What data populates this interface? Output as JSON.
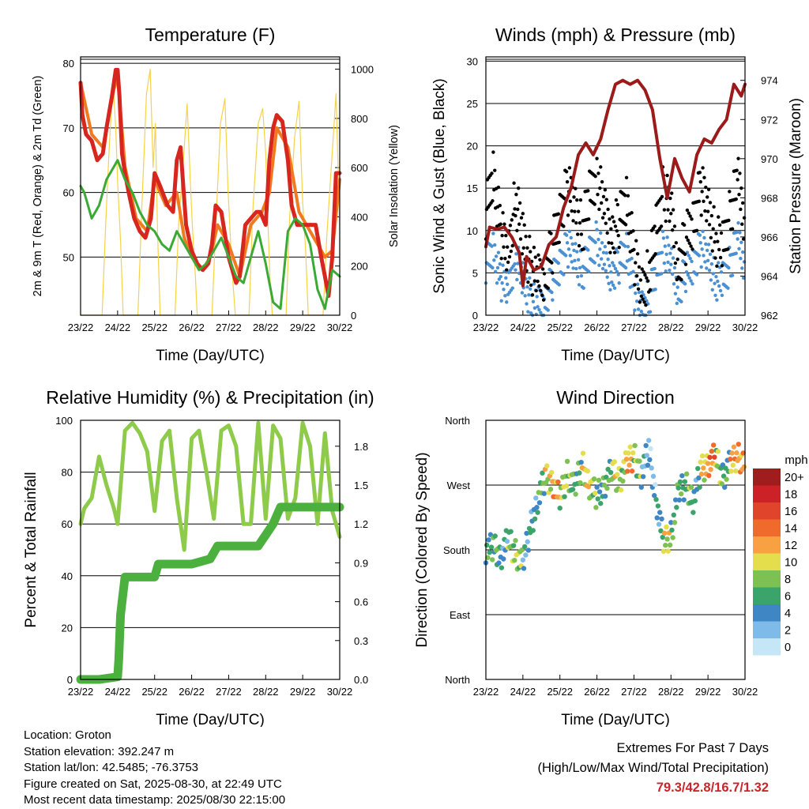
{
  "chart_data": [
    {
      "type": "line",
      "title": "Temperature (F)",
      "xlabel": "Time (Day/UTC)",
      "ylabel": "2m & 9m T (Red, Orange) & 2m Td (Green)",
      "ylabel_right": "Solar Insolation (Yellow)",
      "x_ticks": [
        "23/22",
        "24/22",
        "25/22",
        "26/22",
        "27/22",
        "28/22",
        "29/22",
        "30/22"
      ],
      "ylim": [
        41,
        81
      ],
      "yticks": [
        50,
        60,
        70,
        80
      ],
      "ylim_right": [
        0,
        1050
      ],
      "yticks_right": [
        0,
        200,
        400,
        600,
        800,
        1000
      ],
      "grid": true,
      "series": [
        {
          "color": "#d7261e",
          "axis": "left",
          "x_days": [
            0,
            0.05,
            0.15,
            0.3,
            0.45,
            0.6,
            0.7,
            0.85,
            0.95,
            1.0,
            1.05,
            1.12,
            1.2,
            1.3,
            1.45,
            1.6,
            1.75,
            1.9,
            2.0,
            2.15,
            2.35,
            2.5,
            2.6,
            2.7,
            2.85,
            3.0,
            3.15,
            3.3,
            3.45,
            3.55,
            3.65,
            3.8,
            4.0,
            4.2,
            4.3,
            4.45,
            4.6,
            4.75,
            4.85,
            5.0,
            5.1,
            5.2,
            5.3,
            5.45,
            5.6,
            5.7,
            5.85,
            6.0,
            6.2,
            6.35,
            6.5,
            6.6,
            6.7,
            6.8,
            6.9,
            7.0
          ],
          "values": [
            77,
            72,
            69,
            68,
            65,
            66,
            70,
            75,
            79,
            79,
            75,
            66,
            63,
            60,
            56,
            54,
            53,
            56,
            63,
            61,
            58,
            57,
            65,
            67,
            55,
            51,
            49,
            48,
            49,
            52,
            58,
            57,
            50,
            46,
            47,
            55,
            56,
            57,
            57,
            55,
            65,
            70,
            72,
            71,
            65,
            58,
            55,
            55,
            55,
            55,
            50,
            47,
            44,
            50,
            63,
            63
          ]
        },
        {
          "color": "#f07a20",
          "axis": "left",
          "x_days": [
            0,
            0.3,
            0.6,
            0.9,
            1.0,
            1.2,
            1.5,
            1.8,
            2.0,
            2.3,
            2.6,
            2.8,
            3.0,
            3.3,
            3.5,
            3.7,
            4.0,
            4.3,
            4.6,
            4.9,
            5.1,
            5.3,
            5.6,
            5.9,
            6.2,
            6.4,
            6.6,
            6.8,
            7.0
          ],
          "values": [
            77,
            69,
            67,
            76,
            78,
            64,
            56,
            54,
            62,
            58,
            60,
            53,
            50,
            48,
            50,
            55,
            52,
            47,
            55,
            57,
            60,
            70,
            67,
            57,
            54,
            52,
            50,
            51,
            62
          ]
        },
        {
          "color": "#3aa935",
          "axis": "left",
          "x_days": [
            0,
            0.1,
            0.3,
            0.5,
            0.7,
            0.9,
            1.0,
            1.2,
            1.4,
            1.6,
            1.8,
            2.0,
            2.2,
            2.4,
            2.6,
            2.8,
            3.0,
            3.2,
            3.4,
            3.6,
            3.8,
            4.0,
            4.2,
            4.4,
            4.6,
            4.8,
            5.0,
            5.2,
            5.4,
            5.6,
            5.8,
            6.0,
            6.2,
            6.4,
            6.6,
            6.8,
            7.0
          ],
          "values": [
            61,
            60,
            56,
            58,
            62,
            64,
            65,
            62,
            60,
            57,
            55,
            54,
            52,
            51,
            54,
            52,
            50,
            48,
            49,
            51,
            53,
            50,
            47,
            46,
            50,
            54,
            49,
            43,
            42,
            54,
            56,
            55,
            52,
            45,
            42,
            48,
            47
          ]
        },
        {
          "color": "#f5d24b",
          "axis": "right",
          "x_days": [
            0,
            0.58,
            0.68,
            0.78,
            0.88,
            0.95,
            1.0,
            1.08,
            1.15,
            1.55,
            1.65,
            1.78,
            1.88,
            1.96,
            2.02,
            2.08,
            2.15,
            2.55,
            2.65,
            2.78,
            2.88,
            2.96,
            3.02,
            3.1,
            3.15,
            3.55,
            3.65,
            3.78,
            3.9,
            3.98,
            4.05,
            4.12,
            4.18,
            4.55,
            4.65,
            4.8,
            4.92,
            5.0,
            5.05,
            5.12,
            5.18,
            5.55,
            5.65,
            5.78,
            5.9,
            6.0,
            6.08,
            6.15,
            6.55,
            6.65,
            6.78,
            6.9,
            7.0
          ],
          "values": [
            0,
            0,
            380,
            700,
            940,
            760,
            540,
            300,
            0,
            0,
            420,
            900,
            1000,
            600,
            780,
            330,
            0,
            0,
            380,
            640,
            860,
            560,
            360,
            160,
            0,
            0,
            350,
            780,
            880,
            520,
            300,
            120,
            0,
            0,
            420,
            780,
            840,
            660,
            420,
            140,
            0,
            0,
            400,
            720,
            870,
            460,
            260,
            0,
            0,
            320,
            620,
            900,
            360
          ]
        }
      ]
    },
    {
      "type": "scatter",
      "title": "Winds (mph) & Pressure (mb)",
      "xlabel": "Time (Day/UTC)",
      "ylabel": "Sonic Wind & Gust (Blue, Black)",
      "ylabel_right": "Station Pressure (Maroon)",
      "x_ticks": [
        "23/22",
        "24/22",
        "25/22",
        "26/22",
        "27/22",
        "28/22",
        "29/22",
        "30/22"
      ],
      "ylim": [
        0,
        30.5
      ],
      "yticks": [
        0,
        5,
        10,
        15,
        20,
        25,
        30
      ],
      "ylim_right": [
        962,
        975.2
      ],
      "yticks_right": [
        962,
        964,
        966,
        968,
        970,
        972,
        974
      ],
      "grid": true,
      "series": [
        {
          "color": "#9b1b1b",
          "axis": "right",
          "x_days": [
            0,
            0.1,
            0.3,
            0.5,
            0.7,
            0.9,
            1.0,
            1.1,
            1.3,
            1.5,
            1.7,
            1.9,
            2.1,
            2.3,
            2.5,
            2.7,
            2.9,
            3.1,
            3.3,
            3.5,
            3.7,
            3.9,
            4.1,
            4.3,
            4.5,
            4.7,
            4.9,
            5.1,
            5.3,
            5.5,
            5.7,
            5.9,
            6.1,
            6.3,
            6.5,
            6.7,
            6.9,
            7.0
          ],
          "values": [
            965.5,
            966.5,
            966.4,
            966.5,
            966.0,
            965.2,
            963.5,
            965.0,
            964.3,
            964.5,
            965.6,
            966.0,
            967.5,
            968.5,
            970.2,
            970.8,
            970.2,
            971.0,
            972.5,
            973.8,
            974.0,
            973.8,
            974.0,
            973.5,
            972.5,
            970.0,
            968.0,
            970.0,
            969.0,
            968.3,
            970.2,
            971.0,
            970.8,
            971.5,
            972.0,
            973.8,
            973.2,
            973.8
          ]
        },
        {
          "color": "#000000",
          "axis": "left",
          "x_days": [
            0,
            0.2,
            0.4,
            0.6,
            0.8,
            1.0,
            1.2,
            1.4,
            1.6,
            1.8,
            2.0,
            2.2,
            2.4,
            2.6,
            2.8,
            3.0,
            3.2,
            3.4,
            3.6,
            3.8,
            4.0,
            4.2,
            4.4,
            4.6,
            4.8,
            5.0,
            5.2,
            5.4,
            5.6,
            5.8,
            6.0,
            6.2,
            6.4,
            6.6,
            6.8,
            7.0
          ],
          "values": [
            12,
            17,
            10,
            7,
            14,
            9,
            6,
            4,
            5,
            8,
            12,
            15,
            13,
            10,
            14,
            17,
            12,
            10,
            11,
            14,
            7,
            3,
            5,
            10,
            15,
            12,
            6,
            9,
            11,
            15,
            13,
            9,
            8,
            12,
            16,
            11
          ]
        },
        {
          "color": "#4a90d2",
          "axis": "left",
          "x_days": [
            0,
            0.2,
            0.4,
            0.6,
            0.8,
            1.0,
            1.2,
            1.4,
            1.6,
            1.8,
            2.0,
            2.2,
            2.4,
            2.6,
            2.8,
            3.0,
            3.2,
            3.4,
            3.6,
            3.8,
            4.0,
            4.2,
            4.4,
            4.6,
            4.8,
            5.0,
            5.2,
            5.4,
            5.6,
            5.8,
            6.0,
            6.2,
            6.4,
            6.6,
            6.8,
            7.0
          ],
          "values": [
            6,
            8,
            4,
            3,
            7,
            4,
            2,
            1,
            2,
            4,
            6,
            8,
            7,
            5,
            7,
            9,
            6,
            5,
            6,
            8,
            3,
            1,
            2,
            5,
            8,
            6,
            3,
            5,
            6,
            8,
            7,
            4,
            4,
            6,
            9,
            6
          ]
        }
      ]
    },
    {
      "type": "line",
      "title": "Relative Humidity (%) & Precipitation (in)",
      "xlabel": "Time (Day/UTC)",
      "ylabel": "Percent & Total Rainfall",
      "x_ticks": [
        "23/22",
        "24/22",
        "25/22",
        "26/22",
        "27/22",
        "28/22",
        "29/22",
        "30/22"
      ],
      "ylim": [
        0,
        100
      ],
      "yticks": [
        0,
        20,
        40,
        60,
        80,
        100
      ],
      "ylim_right": [
        0,
        2.0
      ],
      "yticks_right": [
        "0.0",
        "0.3",
        "0.6",
        "0.9",
        "1.2",
        "1.5",
        "1.8"
      ],
      "yticks_right_values": [
        0,
        0.3,
        0.6,
        0.9,
        1.2,
        1.5,
        1.8
      ],
      "grid": true,
      "series": [
        {
          "color": "#8fcb4b",
          "axis": "left",
          "x_days": [
            0,
            0.1,
            0.3,
            0.5,
            0.7,
            0.9,
            1.0,
            1.2,
            1.4,
            1.6,
            1.8,
            2.0,
            2.2,
            2.4,
            2.6,
            2.8,
            3.0,
            3.2,
            3.4,
            3.6,
            3.8,
            4.0,
            4.2,
            4.4,
            4.6,
            4.8,
            5.0,
            5.2,
            5.4,
            5.6,
            5.8,
            6.0,
            6.2,
            6.4,
            6.6,
            6.8,
            7.0
          ],
          "values": [
            60,
            66,
            70,
            86,
            75,
            66,
            60,
            96,
            99,
            95,
            88,
            65,
            92,
            96,
            70,
            50,
            93,
            96,
            80,
            62,
            96,
            98,
            90,
            60,
            60,
            99,
            62,
            98,
            93,
            62,
            70,
            99,
            90,
            60,
            95,
            65,
            55
          ]
        },
        {
          "color": "#4cb03f",
          "axis": "right",
          "x_days": [
            0,
            0.5,
            1.0,
            1.03,
            1.08,
            1.12,
            1.2,
            2.0,
            2.1,
            3.0,
            3.5,
            3.7,
            4.0,
            4.8,
            5.2,
            5.4,
            6.0,
            7.0
          ],
          "values": [
            0,
            0,
            0.02,
            0.15,
            0.5,
            0.6,
            0.79,
            0.79,
            0.89,
            0.89,
            0.93,
            1.03,
            1.03,
            1.03,
            1.2,
            1.33,
            1.33,
            1.33
          ]
        }
      ]
    },
    {
      "type": "scatter",
      "title": "Wind Direction",
      "xlabel": "Time (Day/UTC)",
      "ylabel": "Direction (Colored By Speed)",
      "x_ticks": [
        "23/22",
        "24/22",
        "25/22",
        "26/22",
        "27/22",
        "28/22",
        "29/22",
        "30/22"
      ],
      "y_categories": [
        "North",
        "East",
        "South",
        "West",
        "North"
      ],
      "ylim": [
        0,
        360
      ],
      "colorbar_unit": "mph",
      "colorbar_labels": [
        "20+",
        "18",
        "16",
        "14",
        "12",
        "10",
        "8",
        "6",
        "4",
        "2",
        "0"
      ],
      "colorbar_colors": [
        "#a11c1c",
        "#cc2127",
        "#e0442a",
        "#f06a2c",
        "#f7a143",
        "#e4de4d",
        "#7cc152",
        "#3aa46a",
        "#3f86c4",
        "#7fbbe8",
        "#c4e6f7"
      ],
      "x_days": [
        0,
        0.2,
        0.4,
        0.6,
        0.8,
        1.0,
        1.2,
        1.4,
        1.6,
        1.8,
        2.0,
        2.2,
        2.4,
        2.6,
        2.8,
        3.0,
        3.2,
        3.4,
        3.6,
        3.8,
        4.0,
        4.2,
        4.4,
        4.6,
        4.8,
        5.0,
        5.2,
        5.4,
        5.6,
        5.8,
        6.0,
        6.2,
        6.4,
        6.6,
        6.8,
        7.0
      ],
      "directions": [
        180,
        185,
        170,
        195,
        175,
        160,
        210,
        250,
        280,
        275,
        250,
        285,
        265,
        300,
        270,
        255,
        270,
        290,
        275,
        300,
        310,
        285,
        320,
        250,
        190,
        200,
        260,
        270,
        250,
        290,
        300,
        310,
        280,
        300,
        310,
        300
      ],
      "speeds": [
        5,
        6,
        4,
        7,
        8,
        3,
        4,
        6,
        9,
        12,
        8,
        7,
        6,
        10,
        8,
        5,
        6,
        9,
        8,
        11,
        7,
        3,
        2,
        4,
        9,
        6,
        5,
        7,
        4,
        10,
        13,
        8,
        5,
        11,
        12,
        9
      ]
    }
  ],
  "info": {
    "location": "Location: Groton",
    "elevation": "Station elevation: 392.247 m",
    "latlon": "Station lat/lon: 42.5485; -76.3753",
    "created": "Figure created on Sat, 2025-08-30, at 22:49 UTC",
    "recent": "Most recent data timestamp: 2025/08/30 22:15:00"
  },
  "extremes": {
    "line1": "Extremes For Past 7 Days",
    "line2": "(High/Low/Max Wind/Total Precipitation)",
    "value": "79.3/42.8/16.7/1.32"
  }
}
